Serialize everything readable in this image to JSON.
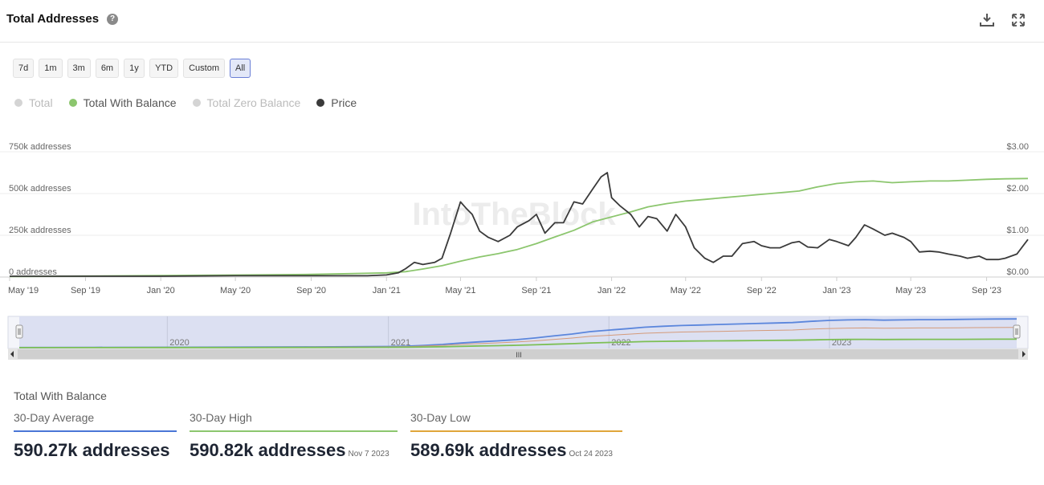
{
  "header": {
    "title": "Total Addresses",
    "help": "?"
  },
  "ranges": [
    "7d",
    "1m",
    "3m",
    "6m",
    "1y",
    "YTD",
    "Custom",
    "All"
  ],
  "active_range": "All",
  "legend": [
    {
      "label": "Total",
      "color": "#d4d4d4",
      "active": false
    },
    {
      "label": "Total With Balance",
      "color": "#8cc66e",
      "active": true
    },
    {
      "label": "Total Zero Balance",
      "color": "#d4d4d4",
      "active": false
    },
    {
      "label": "Price",
      "color": "#3a3a3a",
      "active": true
    }
  ],
  "watermark": "IntoTheBlock",
  "chart_data": {
    "type": "line",
    "x_ticks": [
      "May '19",
      "Sep '19",
      "Jan '20",
      "May '20",
      "Sep '20",
      "Jan '21",
      "May '21",
      "Sep '21",
      "Jan '22",
      "May '22",
      "Sep '22",
      "Jan '23",
      "May '23",
      "Sep '23"
    ],
    "y_left_ticks": [
      "0 addresses",
      "250k addresses",
      "500k addresses",
      "750k addresses"
    ],
    "y_right_ticks": [
      "$0.00",
      "$1.00",
      "$2.00",
      "$3.00"
    ],
    "y_left_range": [
      0,
      750000
    ],
    "y_right_range": [
      0,
      3
    ],
    "series": [
      {
        "name": "Total With Balance",
        "color": "#8cc66e",
        "axis": "left",
        "x": [
          "2019-05-01",
          "2019-09-01",
          "2020-01-01",
          "2020-05-01",
          "2020-09-01",
          "2020-11-01",
          "2021-01-01",
          "2021-02-01",
          "2021-03-01",
          "2021-04-01",
          "2021-05-01",
          "2021-06-01",
          "2021-07-01",
          "2021-08-01",
          "2021-09-01",
          "2021-10-01",
          "2021-11-01",
          "2021-12-01",
          "2022-01-01",
          "2022-02-01",
          "2022-03-01",
          "2022-04-01",
          "2022-05-01",
          "2022-06-01",
          "2022-07-01",
          "2022-08-01",
          "2022-09-01",
          "2022-10-01",
          "2022-11-01",
          "2022-12-01",
          "2023-01-01",
          "2023-02-01",
          "2023-03-01",
          "2023-04-01",
          "2023-05-01",
          "2023-06-01",
          "2023-07-01",
          "2023-08-01",
          "2023-09-01",
          "2023-10-01",
          "2023-11-07"
        ],
        "y": [
          3000,
          6000,
          9000,
          12000,
          16000,
          20000,
          25000,
          32000,
          48000,
          68000,
          95000,
          120000,
          140000,
          165000,
          200000,
          240000,
          280000,
          330000,
          360000,
          390000,
          420000,
          440000,
          455000,
          465000,
          475000,
          485000,
          495000,
          505000,
          515000,
          540000,
          560000,
          570000,
          575000,
          565000,
          570000,
          575000,
          575000,
          580000,
          585000,
          588000,
          590000
        ]
      },
      {
        "name": "Price",
        "color": "#3a3a3a",
        "axis": "right",
        "x": [
          "2019-05-01",
          "2019-09-01",
          "2020-01-01",
          "2020-05-01",
          "2020-09-01",
          "2020-12-01",
          "2021-01-01",
          "2021-01-20",
          "2021-02-01",
          "2021-02-15",
          "2021-03-01",
          "2021-03-20",
          "2021-04-01",
          "2021-04-15",
          "2021-05-01",
          "2021-05-10",
          "2021-05-20",
          "2021-06-01",
          "2021-06-15",
          "2021-07-01",
          "2021-07-20",
          "2021-08-01",
          "2021-08-20",
          "2021-09-01",
          "2021-09-15",
          "2021-10-01",
          "2021-10-15",
          "2021-11-01",
          "2021-11-15",
          "2021-12-01",
          "2021-12-15",
          "2021-12-25",
          "2022-01-01",
          "2022-01-15",
          "2022-02-01",
          "2022-02-15",
          "2022-03-01",
          "2022-03-15",
          "2022-04-01",
          "2022-04-15",
          "2022-05-01",
          "2022-05-15",
          "2022-06-01",
          "2022-06-15",
          "2022-07-01",
          "2022-07-15",
          "2022-08-01",
          "2022-08-20",
          "2022-09-01",
          "2022-09-15",
          "2022-10-01",
          "2022-10-20",
          "2022-11-01",
          "2022-11-15",
          "2022-12-01",
          "2022-12-20",
          "2023-01-01",
          "2023-01-20",
          "2023-02-01",
          "2023-02-15",
          "2023-03-01",
          "2023-03-20",
          "2023-04-01",
          "2023-04-20",
          "2023-05-01",
          "2023-05-15",
          "2023-06-01",
          "2023-06-15",
          "2023-07-01",
          "2023-07-20",
          "2023-08-01",
          "2023-08-20",
          "2023-09-01",
          "2023-09-20",
          "2023-10-01",
          "2023-10-20",
          "2023-11-07"
        ],
        "y": [
          0.02,
          0.02,
          0.02,
          0.03,
          0.03,
          0.03,
          0.05,
          0.1,
          0.2,
          0.35,
          0.3,
          0.35,
          0.45,
          1.05,
          1.8,
          1.65,
          1.5,
          1.1,
          0.95,
          0.85,
          1.0,
          1.2,
          1.35,
          1.5,
          1.05,
          1.3,
          1.3,
          1.8,
          1.75,
          2.1,
          2.4,
          2.5,
          1.9,
          1.7,
          1.5,
          1.2,
          1.45,
          1.4,
          1.1,
          1.5,
          1.2,
          0.7,
          0.45,
          0.35,
          0.5,
          0.5,
          0.8,
          0.85,
          0.75,
          0.7,
          0.7,
          0.82,
          0.85,
          0.72,
          0.7,
          0.9,
          0.85,
          0.75,
          0.95,
          1.25,
          1.15,
          1.0,
          1.05,
          0.95,
          0.85,
          0.6,
          0.62,
          0.6,
          0.55,
          0.5,
          0.45,
          0.5,
          0.42,
          0.42,
          0.45,
          0.55,
          0.9
        ]
      }
    ]
  },
  "navigator": {
    "year_labels": [
      "2020",
      "2021",
      "2022",
      "2023"
    ],
    "grip": "III"
  },
  "stats": {
    "section_title": "Total With Balance",
    "avg": {
      "label": "30-Day Average",
      "value": "590.27k addresses",
      "date": "",
      "color": "#4a76d6"
    },
    "high": {
      "label": "30-Day High",
      "value": "590.82k addresses",
      "date": "Nov 7 2023",
      "color": "#8cc66e"
    },
    "low": {
      "label": "30-Day Low",
      "value": "589.69k addresses",
      "date": "Oct 24 2023",
      "color": "#e0a63a"
    }
  }
}
